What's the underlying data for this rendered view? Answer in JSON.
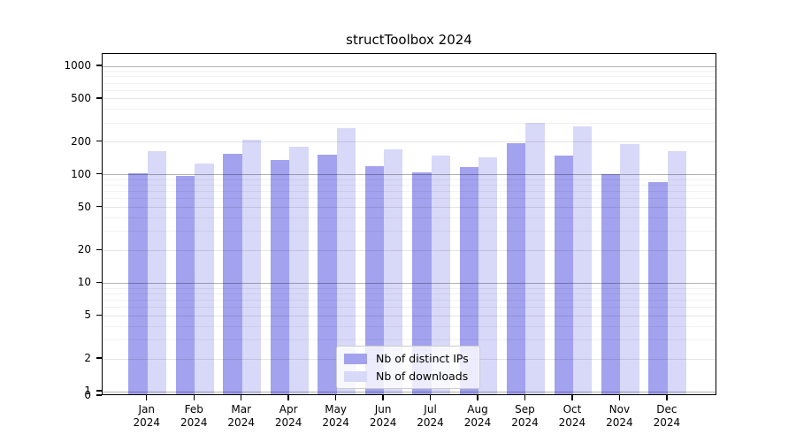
{
  "title": "structToolbox 2024",
  "legend": {
    "items": [
      {
        "label": "Nb of distinct IPs",
        "color": "#a2a2ef"
      },
      {
        "label": "Nb of downloads",
        "color": "#d8d8f8"
      }
    ]
  },
  "chart_data": {
    "type": "bar",
    "title": "structToolbox 2024",
    "categories": [
      "Jan 2024",
      "Feb 2024",
      "Mar 2024",
      "Apr 2024",
      "May 2024",
      "Jun 2024",
      "Jul 2024",
      "Aug 2024",
      "Sep 2024",
      "Oct 2024",
      "Nov 2024",
      "Dec 2024"
    ],
    "series": [
      {
        "name": "Nb of distinct IPs",
        "color": "#a2a2ef",
        "values": [
          104,
          97,
          156,
          137,
          153,
          120,
          106,
          118,
          196,
          150,
          101,
          86
        ]
      },
      {
        "name": "Nb of downloads",
        "color": "#d8d8f8",
        "values": [
          165,
          127,
          212,
          180,
          267,
          170,
          149,
          146,
          302,
          277,
          190,
          165
        ]
      }
    ],
    "xlabel": "",
    "ylabel": "",
    "yscale": "symlog",
    "yticks": [
      0,
      1,
      2,
      5,
      10,
      20,
      50,
      100,
      200,
      500,
      1000
    ],
    "ylim": [
      0,
      1300
    ],
    "grid": "both",
    "legend_position": "lower-center-inside"
  }
}
